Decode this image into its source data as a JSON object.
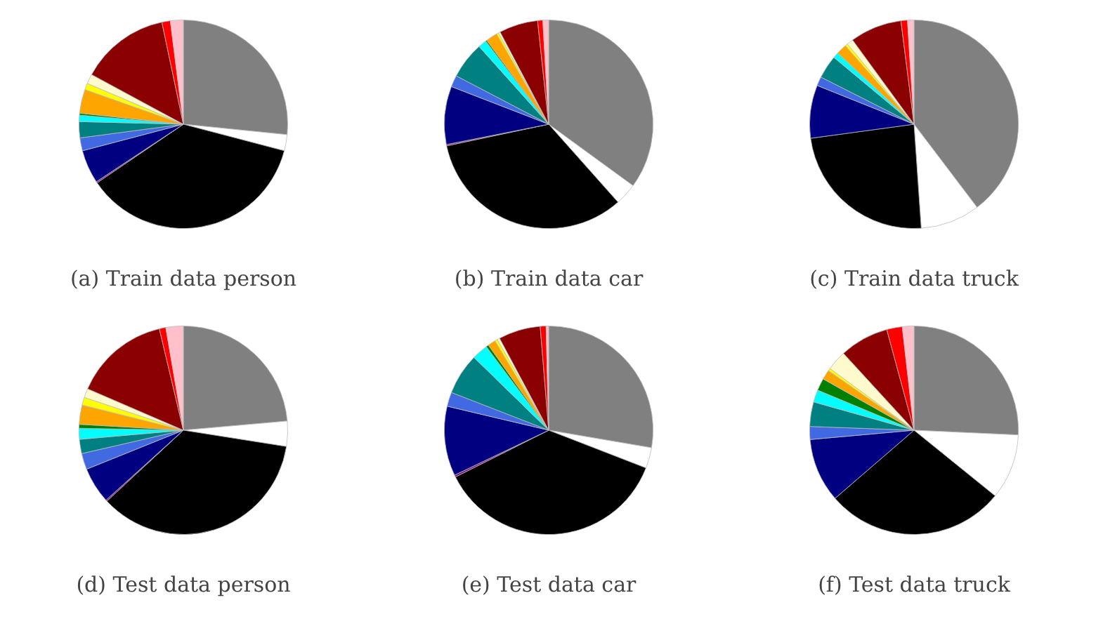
{
  "chart_data": [
    {
      "type": "pie",
      "title": "(a) Train data person",
      "categories": [
        null,
        null,
        null,
        null,
        null,
        null,
        null,
        null,
        null,
        null,
        null,
        null,
        null,
        null,
        null
      ],
      "values": [
        26.6,
        2.5,
        36.4,
        0.2,
        5.2,
        2,
        2.5,
        1,
        0.3,
        3.7,
        1,
        1.5,
        13.8,
        1.3,
        2
      ],
      "colors": [
        "#808080",
        "#ffffff",
        "#000000",
        "#800080",
        "#000080",
        "#4169e1",
        "#008080",
        "#00ffff",
        "#008000",
        "#ffa500",
        "#ffff00",
        "#fffacd",
        "#8b0000",
        "#ff0000",
        "#ffc0cb"
      ]
    },
    {
      "type": "pie",
      "title": "(b) Train data car",
      "categories": [
        null,
        null,
        null,
        null,
        null,
        null,
        null,
        null,
        null,
        null,
        null,
        null,
        null,
        null,
        null
      ],
      "values": [
        35,
        3.4,
        33.2,
        0.2,
        9,
        1.8,
        5.7,
        1.3,
        0.2,
        1.8,
        0.3,
        0.3,
        6,
        0.8,
        0.9
      ],
      "colors": [
        "#808080",
        "#ffffff",
        "#000000",
        "#800080",
        "#000080",
        "#4169e1",
        "#008080",
        "#00ffff",
        "#008000",
        "#ffa500",
        "#ffff00",
        "#fffacd",
        "#8b0000",
        "#ff0000",
        "#ffc0cb"
      ]
    },
    {
      "type": "pie",
      "title": "(c) Train data truck",
      "categories": [
        null,
        null,
        null,
        null,
        null,
        null,
        null,
        null,
        null,
        null,
        null,
        null,
        null,
        null,
        null
      ],
      "values": [
        39.6,
        9.2,
        23.9,
        null,
        8.2,
        1.4,
        3.6,
        0.9,
        null,
        1.6,
        0.4,
        1,
        8,
        1,
        1
      ],
      "colors": [
        "#808080",
        "#ffffff",
        "#000000",
        "#800080",
        "#000080",
        "#4169e1",
        "#008080",
        "#00ffff",
        "#008000",
        "#ffa500",
        "#ffff00",
        "#fffacd",
        "#8b0000",
        "#ff0000",
        "#ffc0cb"
      ]
    },
    {
      "type": "pie",
      "title": "(d) Test data person",
      "categories": [
        null,
        null,
        null,
        null,
        null,
        null,
        null,
        null,
        null,
        null,
        null,
        null,
        null,
        null,
        null
      ],
      "values": [
        23.6,
        3.9,
        35.6,
        0.2,
        5.6,
        2.5,
        2.2,
        1.7,
        0.6,
        3,
        1.2,
        1.4,
        14.8,
        1,
        2.7
      ],
      "colors": [
        "#808080",
        "#ffffff",
        "#000000",
        "#800080",
        "#000080",
        "#4169e1",
        "#008080",
        "#00ffff",
        "#008000",
        "#ffa500",
        "#ffff00",
        "#fffacd",
        "#8b0000",
        "#ff0000",
        "#ffc0cb"
      ]
    },
    {
      "type": "pie",
      "title": "(e) Test data car",
      "categories": [
        null,
        null,
        null,
        null,
        null,
        null,
        null,
        null,
        null,
        null,
        null,
        null,
        null,
        null,
        null
      ],
      "values": [
        27.7,
        3.2,
        36.7,
        0.3,
        10.8,
        2.2,
        6.4,
        2.5,
        0.4,
        1.2,
        0.4,
        0.4,
        6.5,
        0.9,
        0.4
      ],
      "colors": [
        "#808080",
        "#ffffff",
        "#000000",
        "#800080",
        "#000080",
        "#4169e1",
        "#008080",
        "#00ffff",
        "#008000",
        "#ffa500",
        "#ffff00",
        "#fffacd",
        "#8b0000",
        "#ff0000",
        "#ffc0cb"
      ]
    },
    {
      "type": "pie",
      "title": "(f) Test data truck",
      "categories": [
        null,
        null,
        null,
        null,
        null,
        null,
        null,
        null,
        null,
        null,
        null,
        null,
        null,
        null,
        null
      ],
      "values": [
        25.7,
        10.1,
        27.8,
        null,
        9.9,
        2,
        3.8,
        1.9,
        1.9,
        1.5,
        0.4,
        3.1,
        7.6,
        2.4,
        1.8
      ],
      "colors": [
        "#808080",
        "#ffffff",
        "#000000",
        "#800080",
        "#000080",
        "#4169e1",
        "#008080",
        "#00ffff",
        "#008000",
        "#ffa500",
        "#ffff00",
        "#fffacd",
        "#8b0000",
        "#ff0000",
        "#ffc0cb"
      ]
    }
  ]
}
